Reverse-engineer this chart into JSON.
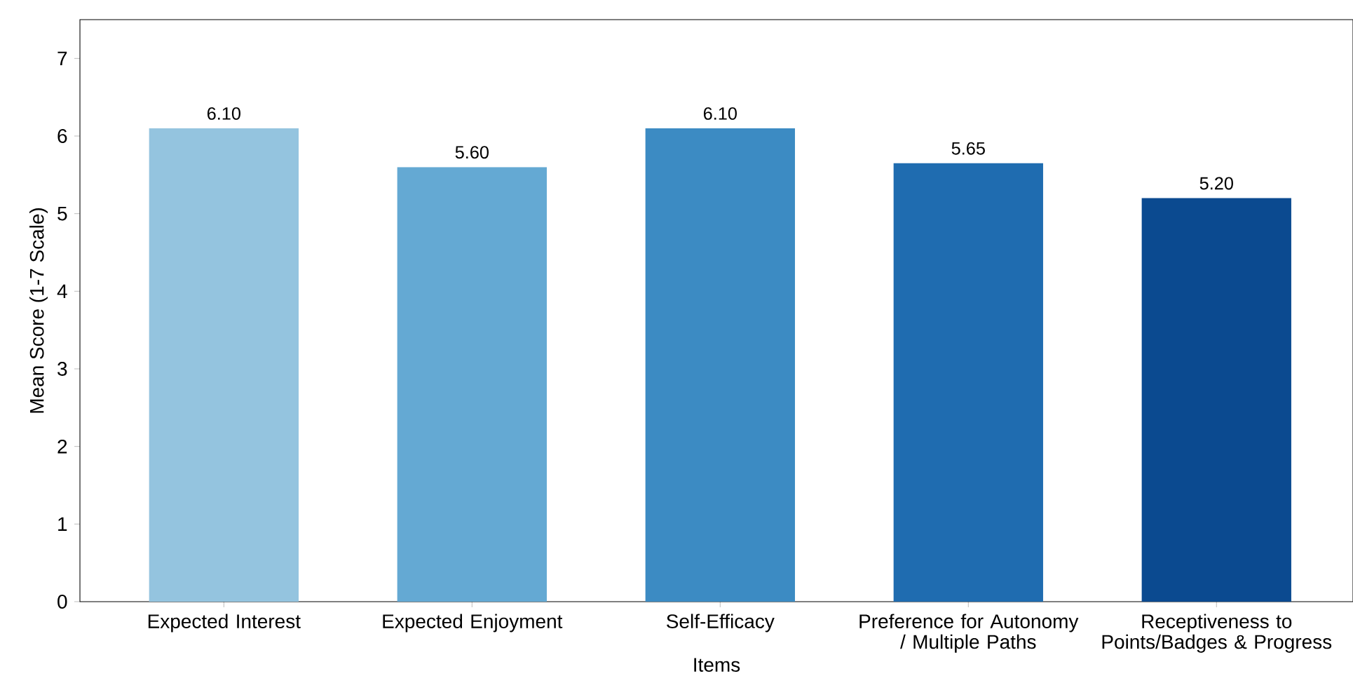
{
  "chart_data": {
    "type": "bar",
    "xlabel": "Items",
    "ylabel": "Mean Score (1-7 Scale)",
    "categories": [
      "Expected Interest",
      "Expected Enjoyment",
      "Self-Efficacy",
      "Preference for Autonomy / Multiple Paths",
      "Receptiveness to Points/Badges & Progress"
    ],
    "values": [
      6.1,
      5.6,
      6.1,
      5.65,
      5.2
    ],
    "colors": [
      "#94c4df",
      "#64a9d3",
      "#3c8bc3",
      "#1f6cb0",
      "#0b4a90"
    ],
    "value_labels": [
      "6.10",
      "5.60",
      "6.10",
      "5.65",
      "5.20"
    ],
    "ylim": [
      0,
      7.5
    ],
    "yticks": [
      0,
      1,
      2,
      3,
      4,
      5,
      6,
      7
    ],
    "grid": false
  }
}
